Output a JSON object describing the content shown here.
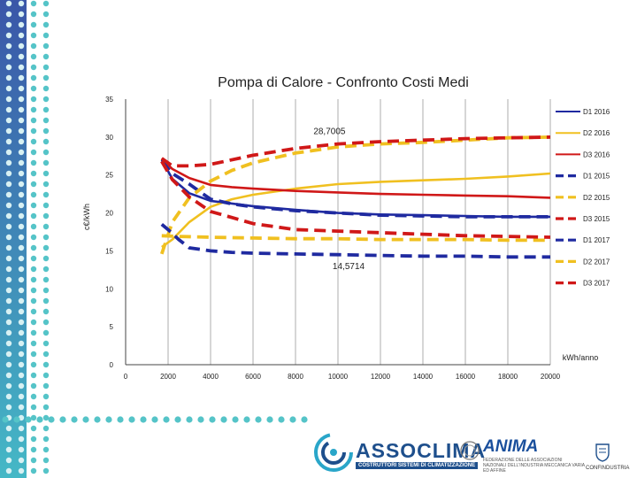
{
  "chart_data": {
    "type": "line",
    "title": "Pompa di Calore - Confronto Costi Medi",
    "xlabel": "kWh/anno",
    "ylabel": "c€/kWh",
    "xlim": [
      0,
      20000
    ],
    "ylim": [
      0,
      35
    ],
    "xticks": [
      0,
      2000,
      4000,
      6000,
      8000,
      10000,
      12000,
      14000,
      16000,
      18000,
      20000
    ],
    "yticks": [
      0,
      5,
      10,
      15,
      20,
      25,
      30,
      35
    ],
    "grid": "vertical",
    "legend_position": "right",
    "series": [
      {
        "name": "D1 2016",
        "color": "#1f2aa0",
        "dash": "solid",
        "x": [
          1700,
          2200,
          3000,
          4000,
          6000,
          8000,
          10000,
          12000,
          14000,
          16000,
          18000,
          20000
        ],
        "y": [
          27.0,
          24.5,
          22.6,
          21.6,
          20.9,
          20.4,
          20.0,
          19.8,
          19.7,
          19.6,
          19.5,
          19.5
        ]
      },
      {
        "name": "D2 2016",
        "color": "#f0c020",
        "dash": "solid",
        "x": [
          1700,
          2200,
          3000,
          4000,
          5000,
          6000,
          8000,
          10000,
          12000,
          14000,
          16000,
          18000,
          20000
        ],
        "y": [
          15.5,
          16.5,
          18.8,
          20.8,
          21.8,
          22.4,
          23.2,
          23.8,
          24.1,
          24.3,
          24.5,
          24.8,
          25.2
        ]
      },
      {
        "name": "D3 2016",
        "color": "#d01818",
        "dash": "solid",
        "x": [
          1700,
          2200,
          3000,
          4000,
          5000,
          6000,
          8000,
          10000,
          12000,
          14000,
          16000,
          18000,
          20000
        ],
        "y": [
          27.2,
          25.8,
          24.6,
          23.7,
          23.4,
          23.2,
          22.9,
          22.7,
          22.5,
          22.4,
          22.3,
          22.2,
          22.0
        ]
      },
      {
        "name": "D1 2015",
        "color": "#1f2aa0",
        "dash": "dashed",
        "x": [
          1700,
          2200,
          3000,
          4000,
          5000,
          6000,
          8000,
          10000,
          12000,
          14000,
          16000,
          18000,
          20000
        ],
        "y": [
          26.8,
          25.2,
          23.8,
          21.8,
          21.2,
          20.8,
          20.3,
          20.0,
          19.7,
          19.6,
          19.5,
          19.5,
          19.5
        ]
      },
      {
        "name": "D2 2015",
        "color": "#f0c020",
        "dash": "dashed",
        "x": [
          1700,
          2200,
          3000,
          4000,
          5000,
          6000,
          8000,
          10000,
          12000,
          14000,
          16000,
          18000,
          20000
        ],
        "y": [
          14.6,
          18.8,
          22.0,
          24.2,
          25.6,
          26.6,
          27.9,
          28.7,
          29.1,
          29.3,
          29.6,
          29.9,
          30.0
        ]
      },
      {
        "name": "D3 2015",
        "color": "#d01818",
        "dash": "dashed",
        "x": [
          1700,
          2200,
          3000,
          4000,
          6000,
          8000,
          10000,
          12000,
          14000,
          16000,
          18000,
          20000
        ],
        "y": [
          27.2,
          26.2,
          26.2,
          26.4,
          27.6,
          28.5,
          29.1,
          29.4,
          29.6,
          29.8,
          29.9,
          30.0
        ]
      },
      {
        "name": "D1 2017",
        "color": "#1f2aa0",
        "dash": "dashed",
        "x": [
          1700,
          2000,
          2500,
          3000,
          4000,
          5000,
          6000,
          8000,
          10000,
          12000,
          14000,
          16000,
          18000,
          20000
        ],
        "y": [
          18.5,
          17.8,
          16.5,
          15.4,
          15.0,
          14.8,
          14.7,
          14.6,
          14.5,
          14.4,
          14.3,
          14.3,
          14.2,
          14.2
        ]
      },
      {
        "name": "D2 2017",
        "color": "#f0c020",
        "dash": "dashed",
        "x": [
          1700,
          2500,
          4000,
          6000,
          8000,
          10000,
          12000,
          14000,
          16000,
          18000,
          20000
        ],
        "y": [
          17.0,
          16.9,
          16.8,
          16.7,
          16.6,
          16.6,
          16.5,
          16.5,
          16.5,
          16.4,
          16.4
        ]
      },
      {
        "name": "D3 2017",
        "color": "#d01818",
        "dash": "dashed",
        "x": [
          1700,
          2200,
          3000,
          4000,
          5000,
          6000,
          8000,
          10000,
          12000,
          14000,
          16000,
          18000,
          20000
        ],
        "y": [
          26.8,
          24.4,
          22.1,
          20.2,
          19.4,
          18.6,
          17.8,
          17.6,
          17.4,
          17.2,
          17.0,
          16.9,
          16.8
        ]
      }
    ],
    "annotations": [
      {
        "text": "28,7005",
        "x": 9600,
        "y": 30.4
      },
      {
        "text": "14,5714",
        "x": 10500,
        "y": 12.6
      }
    ]
  },
  "footer": {
    "assoclima_name": "ASSOCLIMA",
    "assoclima_subtitle": "COSTRUTTORI SISTEMI DI CLIMATIZZAZIONE",
    "anima_name": "ANIMA",
    "anima_subtitle": "FEDERAZIONE DELLE ASSOCIAZIONI NAZIONALI DELL'INDUSTRIA MECCANICA VARIA ED AFFINE",
    "confindustria_name": "CONFINDUSTRIA"
  },
  "colors": {
    "dots": "#55c4c8",
    "sidebar_gradient_top": "#3a56a8",
    "sidebar_gradient_bottom": "#45b8c6",
    "axis": "#444444",
    "grid": "#9a9a9a",
    "brand_blue": "#1e4f8c"
  }
}
